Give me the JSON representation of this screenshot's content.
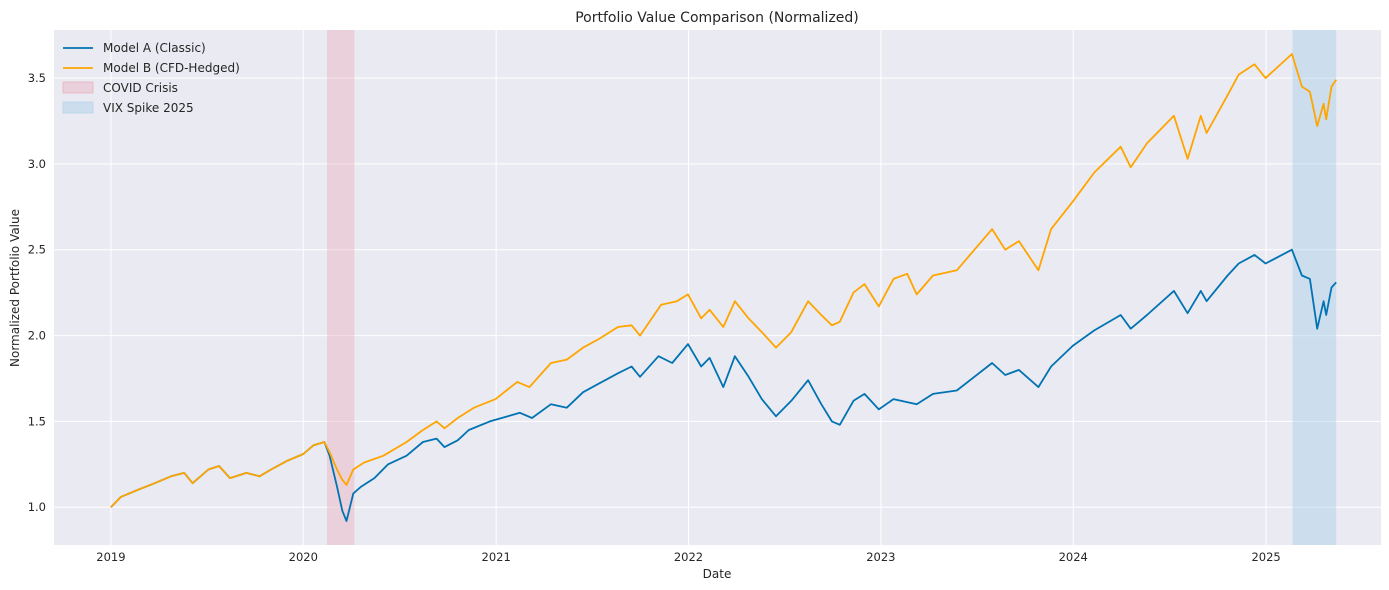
{
  "chart_data": {
    "type": "line",
    "title": "Portfolio Value Comparison (Normalized)",
    "xlabel": "Date",
    "ylabel": "Normalized Portfolio Value",
    "x_tick_labels": [
      "2019",
      "2020",
      "2021",
      "2022",
      "2023",
      "2024",
      "2025"
    ],
    "y_tick_labels": [
      "1.0",
      "1.5",
      "2.0",
      "2.5",
      "3.0",
      "3.5"
    ],
    "xlim": [
      "2018-09-15",
      "2025-08-07"
    ],
    "ylim": [
      0.78,
      3.78
    ],
    "grid": true,
    "legend_position": "upper-left",
    "colors": {
      "background": "#EAEAF2",
      "grid": "#FFFFFF"
    },
    "series": [
      {
        "name": "Model A (Classic)",
        "color": "#0173B2",
        "points": [
          [
            "2019-01-01",
            1.0
          ],
          [
            "2019-01-20",
            1.06
          ],
          [
            "2019-02-20",
            1.1
          ],
          [
            "2019-03-25",
            1.14
          ],
          [
            "2019-04-25",
            1.18
          ],
          [
            "2019-05-20",
            1.2
          ],
          [
            "2019-06-05",
            1.14
          ],
          [
            "2019-07-05",
            1.22
          ],
          [
            "2019-07-25",
            1.24
          ],
          [
            "2019-08-15",
            1.17
          ],
          [
            "2019-09-15",
            1.2
          ],
          [
            "2019-10-10",
            1.18
          ],
          [
            "2019-11-01",
            1.22
          ],
          [
            "2019-12-01",
            1.27
          ],
          [
            "2020-01-01",
            1.31
          ],
          [
            "2020-01-20",
            1.36
          ],
          [
            "2020-02-10",
            1.38
          ],
          [
            "2020-02-20",
            1.3
          ],
          [
            "2020-03-05",
            1.12
          ],
          [
            "2020-03-15",
            0.98
          ],
          [
            "2020-03-23",
            0.92
          ],
          [
            "2020-04-05",
            1.08
          ],
          [
            "2020-04-20",
            1.12
          ],
          [
            "2020-05-15",
            1.17
          ],
          [
            "2020-06-10",
            1.25
          ],
          [
            "2020-07-15",
            1.3
          ],
          [
            "2020-08-15",
            1.38
          ],
          [
            "2020-09-10",
            1.4
          ],
          [
            "2020-09-25",
            1.35
          ],
          [
            "2020-10-20",
            1.39
          ],
          [
            "2020-11-10",
            1.45
          ],
          [
            "2020-12-20",
            1.5
          ],
          [
            "2021-02-15",
            1.55
          ],
          [
            "2021-03-10",
            1.52
          ],
          [
            "2021-04-15",
            1.6
          ],
          [
            "2021-05-15",
            1.58
          ],
          [
            "2021-06-15",
            1.67
          ],
          [
            "2021-07-15",
            1.72
          ],
          [
            "2021-08-20",
            1.78
          ],
          [
            "2021-09-15",
            1.82
          ],
          [
            "2021-10-01",
            1.76
          ],
          [
            "2021-11-05",
            1.88
          ],
          [
            "2021-12-01",
            1.84
          ],
          [
            "2021-12-31",
            1.95
          ],
          [
            "2022-01-25",
            1.82
          ],
          [
            "2022-02-10",
            1.87
          ],
          [
            "2022-03-08",
            1.7
          ],
          [
            "2022-03-30",
            1.88
          ],
          [
            "2022-04-25",
            1.76
          ],
          [
            "2022-05-20",
            1.63
          ],
          [
            "2022-06-16",
            1.53
          ],
          [
            "2022-07-15",
            1.62
          ],
          [
            "2022-08-16",
            1.74
          ],
          [
            "2022-09-10",
            1.6
          ],
          [
            "2022-09-30",
            1.5
          ],
          [
            "2022-10-15",
            1.48
          ],
          [
            "2022-11-10",
            1.62
          ],
          [
            "2022-12-01",
            1.66
          ],
          [
            "2022-12-28",
            1.57
          ],
          [
            "2023-01-25",
            1.63
          ],
          [
            "2023-03-10",
            1.6
          ],
          [
            "2023-04-10",
            1.66
          ],
          [
            "2023-05-25",
            1.68
          ],
          [
            "2023-07-31",
            1.84
          ],
          [
            "2023-08-25",
            1.77
          ],
          [
            "2023-09-20",
            1.8
          ],
          [
            "2023-10-27",
            1.7
          ],
          [
            "2023-11-20",
            1.82
          ],
          [
            "2023-12-31",
            1.94
          ],
          [
            "2024-02-10",
            2.03
          ],
          [
            "2024-03-31",
            2.12
          ],
          [
            "2024-04-19",
            2.04
          ],
          [
            "2024-05-20",
            2.12
          ],
          [
            "2024-07-10",
            2.26
          ],
          [
            "2024-08-05",
            2.13
          ],
          [
            "2024-08-30",
            2.26
          ],
          [
            "2024-09-10",
            2.2
          ],
          [
            "2024-10-20",
            2.35
          ],
          [
            "2024-11-10",
            2.42
          ],
          [
            "2024-12-10",
            2.47
          ],
          [
            "2024-12-31",
            2.42
          ],
          [
            "2025-02-19",
            2.5
          ],
          [
            "2025-03-10",
            2.35
          ],
          [
            "2025-03-25",
            2.33
          ],
          [
            "2025-04-08",
            2.04
          ],
          [
            "2025-04-20",
            2.2
          ],
          [
            "2025-04-25",
            2.12
          ],
          [
            "2025-05-05",
            2.28
          ],
          [
            "2025-05-14",
            2.31
          ]
        ]
      },
      {
        "name": "Model B (CFD-Hedged)",
        "color": "#FFA500",
        "points": [
          [
            "2019-01-01",
            1.0
          ],
          [
            "2019-01-20",
            1.06
          ],
          [
            "2019-02-20",
            1.1
          ],
          [
            "2019-03-25",
            1.14
          ],
          [
            "2019-04-25",
            1.18
          ],
          [
            "2019-05-20",
            1.2
          ],
          [
            "2019-06-05",
            1.14
          ],
          [
            "2019-07-05",
            1.22
          ],
          [
            "2019-07-25",
            1.24
          ],
          [
            "2019-08-15",
            1.17
          ],
          [
            "2019-09-15",
            1.2
          ],
          [
            "2019-10-10",
            1.18
          ],
          [
            "2019-11-01",
            1.22
          ],
          [
            "2019-12-01",
            1.27
          ],
          [
            "2020-01-01",
            1.31
          ],
          [
            "2020-01-20",
            1.36
          ],
          [
            "2020-02-10",
            1.38
          ],
          [
            "2020-02-20",
            1.32
          ],
          [
            "2020-03-05",
            1.22
          ],
          [
            "2020-03-15",
            1.16
          ],
          [
            "2020-03-23",
            1.13
          ],
          [
            "2020-04-05",
            1.22
          ],
          [
            "2020-04-25",
            1.26
          ],
          [
            "2020-06-01",
            1.3
          ],
          [
            "2020-07-15",
            1.38
          ],
          [
            "2020-08-15",
            1.45
          ],
          [
            "2020-09-10",
            1.5
          ],
          [
            "2020-09-25",
            1.46
          ],
          [
            "2020-10-20",
            1.52
          ],
          [
            "2020-11-20",
            1.58
          ],
          [
            "2020-12-31",
            1.63
          ],
          [
            "2021-02-10",
            1.73
          ],
          [
            "2021-03-05",
            1.7
          ],
          [
            "2021-04-15",
            1.84
          ],
          [
            "2021-05-15",
            1.86
          ],
          [
            "2021-06-15",
            1.93
          ],
          [
            "2021-07-15",
            1.98
          ],
          [
            "2021-08-20",
            2.05
          ],
          [
            "2021-09-15",
            2.06
          ],
          [
            "2021-10-01",
            2.0
          ],
          [
            "2021-11-10",
            2.18
          ],
          [
            "2021-12-10",
            2.2
          ],
          [
            "2021-12-31",
            2.24
          ],
          [
            "2022-01-25",
            2.1
          ],
          [
            "2022-02-10",
            2.15
          ],
          [
            "2022-03-08",
            2.05
          ],
          [
            "2022-03-30",
            2.2
          ],
          [
            "2022-04-25",
            2.1
          ],
          [
            "2022-05-20",
            2.02
          ],
          [
            "2022-06-16",
            1.93
          ],
          [
            "2022-07-15",
            2.02
          ],
          [
            "2022-08-16",
            2.2
          ],
          [
            "2022-09-10",
            2.12
          ],
          [
            "2022-09-30",
            2.06
          ],
          [
            "2022-10-15",
            2.08
          ],
          [
            "2022-11-10",
            2.25
          ],
          [
            "2022-12-01",
            2.3
          ],
          [
            "2022-12-28",
            2.17
          ],
          [
            "2023-01-25",
            2.33
          ],
          [
            "2023-02-20",
            2.36
          ],
          [
            "2023-03-10",
            2.24
          ],
          [
            "2023-04-10",
            2.35
          ],
          [
            "2023-05-25",
            2.38
          ],
          [
            "2023-07-31",
            2.62
          ],
          [
            "2023-08-25",
            2.5
          ],
          [
            "2023-09-20",
            2.55
          ],
          [
            "2023-10-27",
            2.38
          ],
          [
            "2023-11-20",
            2.62
          ],
          [
            "2023-12-31",
            2.78
          ],
          [
            "2024-02-10",
            2.95
          ],
          [
            "2024-03-31",
            3.1
          ],
          [
            "2024-04-19",
            2.98
          ],
          [
            "2024-05-20",
            3.12
          ],
          [
            "2024-07-10",
            3.28
          ],
          [
            "2024-08-05",
            3.03
          ],
          [
            "2024-08-30",
            3.28
          ],
          [
            "2024-09-10",
            3.18
          ],
          [
            "2024-10-20",
            3.4
          ],
          [
            "2024-11-10",
            3.52
          ],
          [
            "2024-12-10",
            3.58
          ],
          [
            "2024-12-31",
            3.5
          ],
          [
            "2025-02-19",
            3.64
          ],
          [
            "2025-03-10",
            3.45
          ],
          [
            "2025-03-25",
            3.42
          ],
          [
            "2025-04-08",
            3.22
          ],
          [
            "2025-04-20",
            3.35
          ],
          [
            "2025-04-25",
            3.26
          ],
          [
            "2025-05-05",
            3.45
          ],
          [
            "2025-05-14",
            3.49
          ]
        ]
      }
    ],
    "shaded_regions": [
      {
        "name": "COVID Crisis",
        "start": "2020-02-15",
        "end": "2020-04-07",
        "color": "#E8A0AE"
      },
      {
        "name": "VIX Spike 2025",
        "start": "2025-02-20",
        "end": "2025-05-14",
        "color": "#A8D1E8"
      }
    ]
  }
}
